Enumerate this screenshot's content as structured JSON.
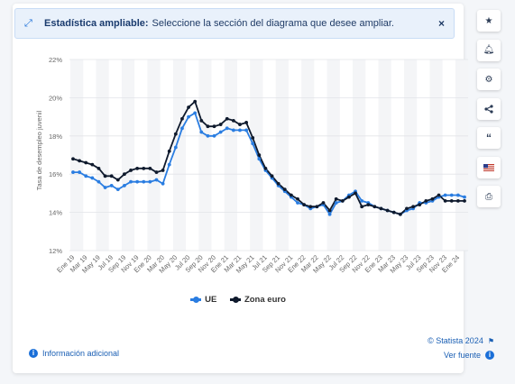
{
  "banner": {
    "title": "Estadística ampliable:",
    "message": "Seleccione la sección del diagrama que desee ampliar."
  },
  "legend": {
    "items": [
      {
        "label": "UE",
        "color": "#2a7de1"
      },
      {
        "label": "Zona euro",
        "color": "#0f1a2d"
      }
    ]
  },
  "footer": {
    "info": "Información adicional",
    "copyright": "© Statista 2024",
    "source": "Ver fuente"
  },
  "sidebar": {
    "icons": [
      "star-icon",
      "bell-icon",
      "gear-icon",
      "share-icon",
      "quote-icon",
      "flag-us-icon",
      "print-icon"
    ]
  },
  "chart_data": {
    "type": "line",
    "ylabel": "Tasa de desempleo juvenil",
    "xlabel": "",
    "ylim": [
      12,
      22
    ],
    "yticks": [
      "12%",
      "14%",
      "16%",
      "18%",
      "20%",
      "22%"
    ],
    "xticks": [
      "Ene 19",
      "Mar 19",
      "May 19",
      "Jul 19",
      "Sep 19",
      "Nov 19",
      "Ene 20",
      "Mar 20",
      "May 20",
      "Jul 20",
      "Sep 20",
      "Nov 20",
      "Ene 21",
      "Mar 21",
      "May 21",
      "Jul 21",
      "Sep 21",
      "Nov 21",
      "Ene 22",
      "Mar 22",
      "May 22",
      "Jul 22",
      "Sep 22",
      "Nov 22",
      "Ene 23",
      "Mar 23",
      "May 23",
      "Jul 23",
      "Sep 23",
      "Nov 23",
      "Ene 24"
    ],
    "grid": true,
    "legend_position": "bottom",
    "series": [
      {
        "name": "UE",
        "color": "#2a7de1",
        "values": [
          16.1,
          16.1,
          15.9,
          15.8,
          15.6,
          15.3,
          15.4,
          15.2,
          15.4,
          15.6,
          15.6,
          15.6,
          15.6,
          15.7,
          15.5,
          16.5,
          17.4,
          18.4,
          19.0,
          19.2,
          18.2,
          18.0,
          18.0,
          18.2,
          18.4,
          18.3,
          18.3,
          18.3,
          17.6,
          16.8,
          16.2,
          15.8,
          15.4,
          15.1,
          14.8,
          14.5,
          14.4,
          14.2,
          14.3,
          14.4,
          13.9,
          14.5,
          14.6,
          14.9,
          15.1,
          14.6,
          14.5,
          14.3,
          14.2,
          14.1,
          14.0,
          13.9,
          14.1,
          14.2,
          14.5,
          14.5,
          14.6,
          14.8,
          14.9,
          14.9,
          14.9,
          14.8
        ]
      },
      {
        "name": "Zona euro",
        "color": "#0f1a2d",
        "values": [
          16.8,
          16.7,
          16.6,
          16.5,
          16.3,
          15.9,
          15.9,
          15.7,
          16.0,
          16.2,
          16.3,
          16.3,
          16.3,
          16.1,
          16.2,
          17.2,
          18.1,
          18.9,
          19.5,
          19.8,
          18.8,
          18.5,
          18.5,
          18.6,
          18.9,
          18.8,
          18.6,
          18.7,
          17.9,
          17.0,
          16.3,
          15.9,
          15.5,
          15.2,
          14.9,
          14.7,
          14.4,
          14.3,
          14.3,
          14.5,
          14.1,
          14.7,
          14.6,
          14.8,
          15.0,
          14.3,
          14.4,
          14.3,
          14.2,
          14.1,
          14.0,
          13.9,
          14.2,
          14.3,
          14.4,
          14.6,
          14.7,
          14.9,
          14.6,
          14.6,
          14.6,
          14.6
        ]
      }
    ]
  }
}
